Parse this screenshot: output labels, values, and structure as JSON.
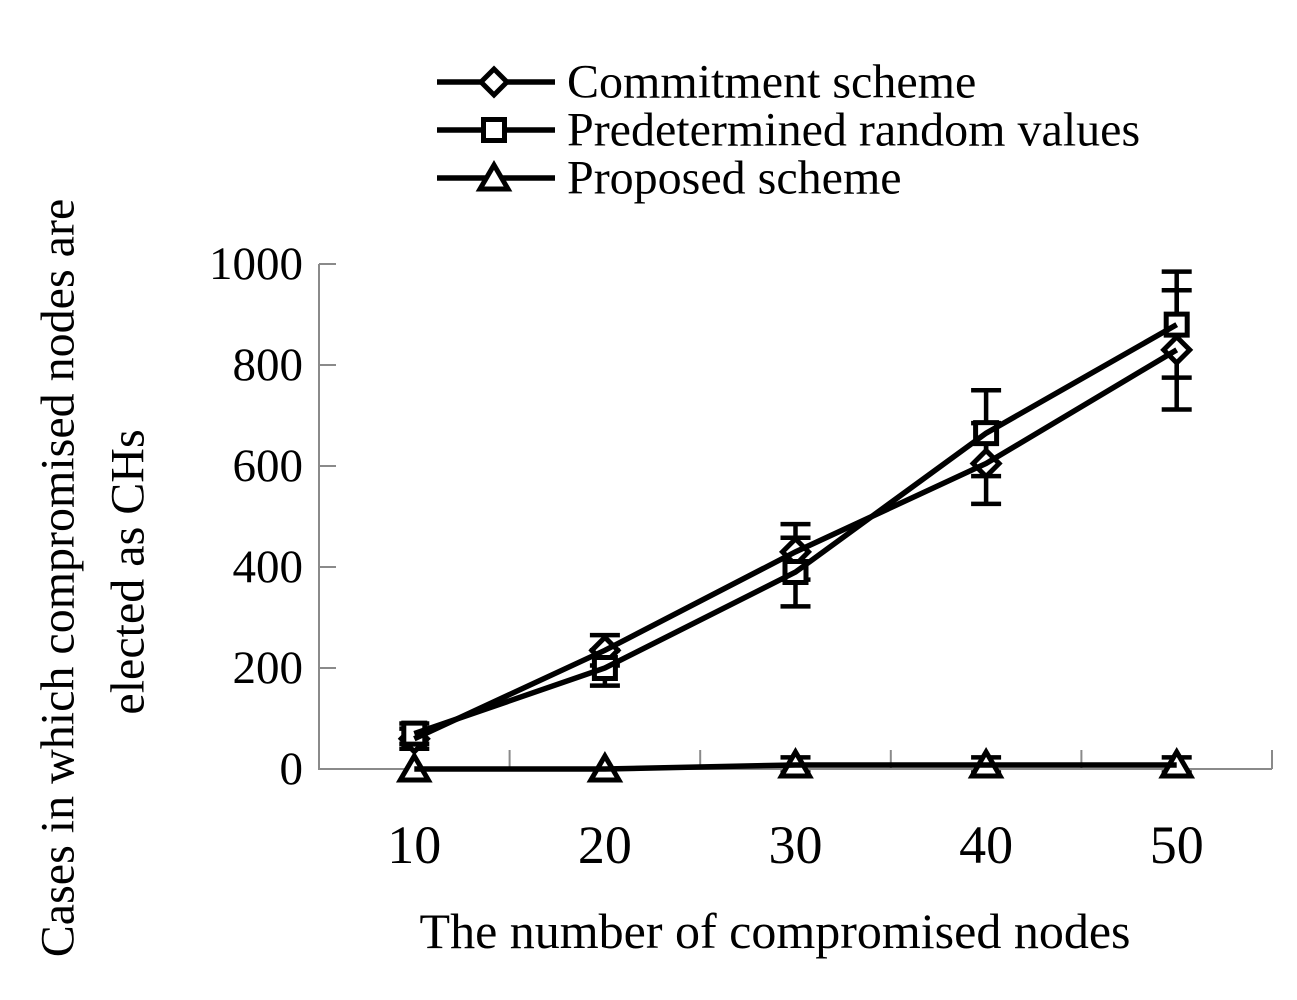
{
  "chart_data": {
    "type": "line",
    "title": "",
    "xlabel": "The number of compromised nodes",
    "ylabel": "Cases in which compromised nodes are elected as CHs",
    "ylabel_lines": [
      "Cases in which compromised nodes are",
      "elected as CHs"
    ],
    "categories": [
      "10",
      "20",
      "30",
      "40",
      "50"
    ],
    "x": [
      10,
      20,
      30,
      40,
      50
    ],
    "ylim": [
      0,
      1000
    ],
    "y_ticks": [
      0,
      200,
      400,
      600,
      800,
      1000
    ],
    "y_tick_labels": [
      "0",
      "200",
      "400",
      "600",
      "800",
      "1000"
    ],
    "grid": false,
    "legend_position": "top-center",
    "error_bars": true,
    "series": [
      {
        "name": "Commitment scheme",
        "marker": "diamond",
        "values": [
          60,
          235,
          430,
          605,
          830
        ],
        "errors": [
          20,
          30,
          55,
          80,
          118
        ]
      },
      {
        "name": "Predetermined random values",
        "marker": "square",
        "values": [
          70,
          200,
          390,
          665,
          880
        ],
        "errors": [
          20,
          35,
          68,
          85,
          105
        ]
      },
      {
        "name": "Proposed scheme",
        "marker": "triangle",
        "values": [
          0,
          0,
          8,
          8,
          8
        ],
        "errors": [
          0,
          0,
          15,
          15,
          15
        ]
      }
    ],
    "colors": {
      "series": "#000000",
      "marker_fill": "#ffffff",
      "axis": "#8a8a8a",
      "text": "#000000",
      "background": "#ffffff"
    }
  }
}
